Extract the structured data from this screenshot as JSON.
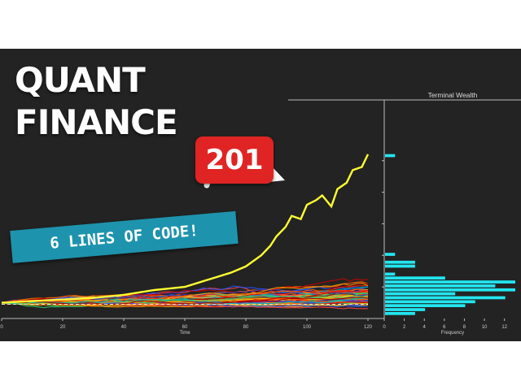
{
  "headline": {
    "line1": "QUANT",
    "line2": "FINANCE",
    "badge": "201",
    "banner": "6 LINES OF CODE!"
  },
  "colors": {
    "background": "#232323",
    "badge": "#e02424",
    "banner": "#1e93ad",
    "histogram": "#22e6f0",
    "highlight_path": "#ffff33"
  },
  "chart_data": [
    {
      "type": "line",
      "title": "",
      "xlabel": "Time",
      "ylabel": "",
      "xlim": [
        0,
        120
      ],
      "ylim": [
        0,
        14
      ],
      "x_ticks": [
        0,
        20,
        40,
        60,
        80,
        100,
        120
      ],
      "grid": false,
      "series_count_note_free": true,
      "highlight_series": {
        "color": "#ffff33",
        "x": [
          0,
          10,
          20,
          30,
          40,
          50,
          55,
          60,
          65,
          70,
          75,
          80,
          85,
          88,
          90,
          93,
          95,
          98,
          100,
          103,
          105,
          108,
          110,
          113,
          115,
          118,
          120
        ],
        "values": [
          1.0,
          1.1,
          1.2,
          1.3,
          1.5,
          1.8,
          1.9,
          2.0,
          2.3,
          2.6,
          2.9,
          3.3,
          4.0,
          4.6,
          5.2,
          5.8,
          6.5,
          6.3,
          7.2,
          7.5,
          7.8,
          7.1,
          8.2,
          8.6,
          9.4,
          9.6,
          10.4
        ]
      },
      "reference_level": 0.9
    },
    {
      "type": "bar",
      "orientation": "horizontal",
      "title": "Terminal Wealth",
      "xlabel": "Frequency",
      "ylabel": "",
      "xlim": [
        0,
        13
      ],
      "x_ticks": [
        0,
        2,
        4,
        6,
        8,
        10,
        12
      ],
      "bins": [
        0.3,
        0.55,
        0.8,
        1.05,
        1.3,
        1.55,
        1.8,
        2.05,
        2.3,
        2.55,
        2.8,
        3.05,
        3.3,
        3.55,
        3.8,
        4.05,
        4.3,
        10.3
      ],
      "values": [
        3,
        4,
        8,
        9,
        12,
        7,
        13,
        11,
        13,
        6,
        1,
        0,
        3,
        3,
        0,
        1,
        0,
        1
      ],
      "color": "#22e6f0"
    }
  ]
}
